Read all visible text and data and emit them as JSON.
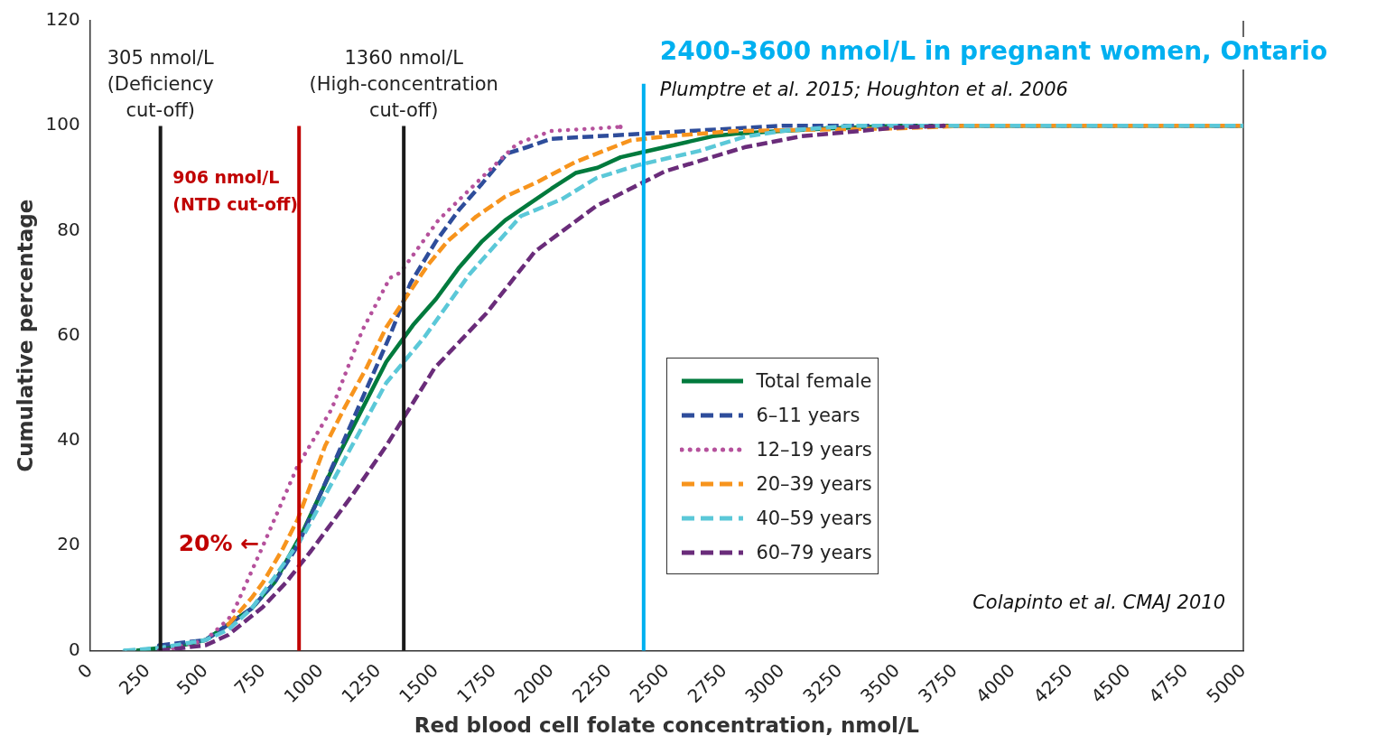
{
  "chart_data": {
    "type": "line",
    "xlabel": "Red blood cell folate concentration, nmol/L",
    "ylabel": "Cumulative percentage",
    "xlim": [
      0,
      5000
    ],
    "xticks": [
      0,
      250,
      500,
      750,
      1000,
      1250,
      1500,
      1750,
      2000,
      2250,
      2500,
      2750,
      3000,
      3250,
      3500,
      3750,
      4000,
      4250,
      4500,
      4750,
      5000
    ],
    "ylim": [
      0,
      120
    ],
    "yticks": [
      0,
      20,
      40,
      60,
      80,
      100,
      120
    ],
    "grid": false,
    "legend": "right",
    "series": [
      {
        "name": "Total female",
        "color": "#007a3d",
        "line_style": "solid",
        "x": [
          200,
          400,
          500,
          600,
          700,
          800,
          926,
          1075,
          1284,
          1400,
          1500,
          1600,
          1700,
          1800,
          1900,
          2000,
          2105,
          2200,
          2300,
          2400,
          2500,
          2600,
          2700,
          2800,
          3000,
          3200,
          3500,
          5000
        ],
        "values": [
          0,
          1,
          2,
          5,
          8,
          13,
          23,
          37,
          55,
          62,
          67,
          73,
          78,
          82,
          85,
          88,
          91,
          92,
          94,
          95,
          96,
          97,
          98,
          98.5,
          99,
          99.5,
          100,
          100
        ]
      },
      {
        "name": "6–11 years",
        "color": "#2e4d9b",
        "line_style": "dashed",
        "x": [
          300,
          500,
          700,
          800,
          900,
          1000,
          1100,
          1200,
          1300,
          1389,
          1500,
          1600,
          1700,
          1808,
          1900,
          2000,
          2200,
          2400,
          2600,
          3000,
          5000
        ],
        "values": [
          1,
          2,
          8,
          13,
          20,
          30,
          40,
          50,
          60,
          70,
          78,
          84,
          89,
          94.7,
          96,
          97.5,
          98,
          98.5,
          99,
          100,
          100
        ]
      },
      {
        "name": "12–19 years",
        "color": "#b5519c",
        "line_style": "dotted",
        "x": [
          360,
          500,
          600,
          628,
          750,
          898,
          1047,
          1180,
          1300,
          1345,
          1510,
          1719,
          1852,
          2000,
          2200,
          2299
        ],
        "values": [
          0.5,
          2,
          6,
          8,
          20,
          35,
          46,
          61,
          71,
          72,
          82,
          91,
          96.6,
          99,
          99.5,
          99.8
        ]
      },
      {
        "name": "20–39 years",
        "color": "#f7941d",
        "line_style": "dashed",
        "x": [
          600,
          700,
          750,
          837,
          900,
          1019,
          1100,
          1200,
          1284,
          1350,
          1465,
          1550,
          1674,
          1800,
          1940,
          2100,
          2226,
          2343,
          2500,
          2800,
          3500,
          3800,
          5000
        ],
        "values": [
          5,
          10,
          13,
          19.5,
          25,
          39,
          46,
          54,
          61.6,
          66,
          73.5,
          78,
          82.7,
          86.5,
          89.3,
          93,
          95.2,
          97.2,
          98,
          99,
          99.5,
          100,
          100
        ]
      },
      {
        "name": "40–59 years",
        "color": "#5bc8d8",
        "line_style": "dashed",
        "x": [
          150,
          300,
          500,
          600,
          700,
          800,
          926,
          1000,
          1135,
          1284,
          1449,
          1643,
          1868,
          2045,
          2194,
          2375,
          2641,
          2838,
          3000,
          3300,
          5000
        ],
        "values": [
          0,
          0.5,
          2,
          4,
          8,
          14,
          22,
          28,
          39,
          51,
          59.7,
          71.6,
          82.8,
          86,
          90,
          92.5,
          95.2,
          97.9,
          99,
          100,
          100
        ]
      },
      {
        "name": "60–79 years",
        "color": "#6a2c7a",
        "line_style": "dashed",
        "x": [
          300,
          500,
          600,
          749,
          850,
          958,
          1135,
          1284,
          1493,
          1719,
          1928,
          2194,
          2492,
          2838,
          3084,
          3486,
          3700
        ],
        "values": [
          0,
          1,
          3,
          8.3,
          13,
          19,
          29.5,
          39,
          53.8,
          64.3,
          76,
          84.7,
          91.3,
          95.9,
          98,
          99.6,
          100
        ]
      }
    ],
    "ref_lines": [
      {
        "axis": "x",
        "value": 305,
        "label": "305 nmol/L\n(Deficiency\ncut-off)",
        "color": "#1a1a1a"
      },
      {
        "axis": "x",
        "value": 906,
        "label": "906 nmol/L\n(NTD cut-off)",
        "color": "#c00000"
      },
      {
        "axis": "x",
        "value": 1360,
        "label": "1360 nmol/L\n(High-concentration\ncut-off)",
        "color": "#1a1a1a"
      },
      {
        "axis": "x",
        "value": 2400,
        "label": "2400-3600 nmol/L in pregnant women, Ontario",
        "color": "#00b0f0"
      }
    ],
    "annotations": [
      "Plumptre et al. 2015; Houghton et al. 2006",
      "20% ←",
      "Colapinto et al. CMAJ 2010"
    ]
  }
}
